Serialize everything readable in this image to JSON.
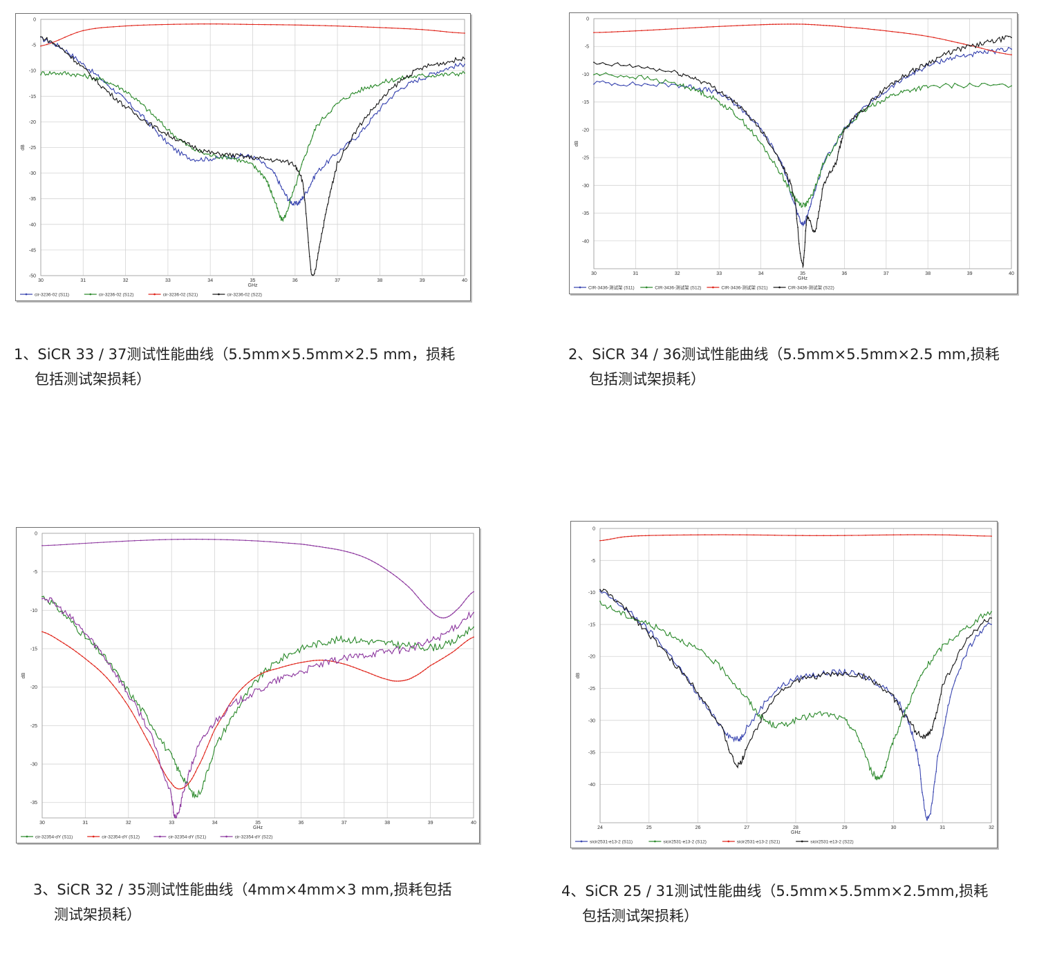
{
  "captions": [
    {
      "line1": "1、SiCR 33 / 37测试性能曲线（5.5mm×5.5mm×2.5 mm，损耗",
      "line2": "包括测试架损耗）"
    },
    {
      "line1": "2、SiCR 34 / 36测试性能曲线（5.5mm×5.5mm×2.5 mm,损耗",
      "line2": "包括测试架损耗）"
    },
    {
      "line1": "3、SiCR 32 / 35测试性能曲线（4mm×4mm×3 mm,损耗包括",
      "line2": "测试架损耗）"
    },
    {
      "line1": "4、SiCR 25 / 31测试性能曲线（5.5mm×5.5mm×2.5mm,损耗",
      "line2": "包括测试架损耗）"
    }
  ],
  "chart_data": [
    {
      "type": "line",
      "xlabel": "GHz",
      "ylabel": "dB",
      "xlim": [
        30,
        40
      ],
      "ylim": [
        -50,
        0
      ],
      "xticks": [
        30,
        31,
        32,
        33,
        34,
        35,
        36,
        37,
        38,
        39,
        40
      ],
      "yticks": [
        0,
        -5,
        -10,
        -15,
        -20,
        -25,
        -30,
        -35,
        -40,
        -45,
        -50
      ],
      "grid": true,
      "legend_position": "bottom",
      "series": [
        {
          "name": "cir-3236-02 (S11)",
          "color": "#3a46b0",
          "x": [
            30,
            30.5,
            31,
            31.5,
            32,
            32.5,
            33,
            33.5,
            34,
            34.5,
            35,
            35.5,
            35.8,
            36,
            36.2,
            36.5,
            37,
            37.5,
            38,
            38.5,
            39,
            39.5,
            40
          ],
          "y": [
            -3.8,
            -5.6,
            -8.8,
            -12.2,
            -15.8,
            -19.8,
            -24.2,
            -27,
            -27.2,
            -26.8,
            -26.9,
            -30,
            -34.5,
            -36,
            -34.5,
            -30,
            -26,
            -22.5,
            -17.5,
            -13.5,
            -11.5,
            -9.8,
            -8.8
          ]
        },
        {
          "name": "cir-3236-02 (S12)",
          "color": "#2e8b2e",
          "x": [
            30,
            30.5,
            31,
            31.5,
            32,
            32.5,
            33,
            33.5,
            34,
            34.5,
            35,
            35.3,
            35.5,
            35.7,
            35.9,
            36.2,
            36.5,
            37,
            37.5,
            38,
            38.5,
            39,
            39.5,
            40
          ],
          "y": [
            -10.5,
            -10.5,
            -11,
            -12,
            -14,
            -17.5,
            -21.5,
            -24.8,
            -26.5,
            -27,
            -28.5,
            -31,
            -35,
            -39,
            -35,
            -27.5,
            -21,
            -16.5,
            -14,
            -12.5,
            -11.5,
            -11,
            -10.8,
            -10.5
          ]
        },
        {
          "name": "cir-3236-02 (S21)",
          "color": "#e0261c",
          "x": [
            30,
            31,
            32,
            33,
            34,
            35,
            36,
            37,
            38,
            39,
            40
          ],
          "y": [
            -5.2,
            -2.2,
            -1.3,
            -1,
            -0.9,
            -1,
            -1.1,
            -1.3,
            -1.6,
            -2,
            -2.7
          ]
        },
        {
          "name": "cir-3236-02 (S22)",
          "color": "#1a1a1a",
          "x": [
            30,
            30.5,
            31,
            31.5,
            32,
            32.5,
            33,
            33.5,
            34,
            34.5,
            35,
            35.5,
            36,
            36.2,
            36.4,
            36.6,
            36.8,
            37,
            37.5,
            38,
            38.5,
            39,
            39.5,
            40
          ],
          "y": [
            -3.5,
            -5.8,
            -9.5,
            -13.5,
            -17,
            -20,
            -22.5,
            -24.5,
            -26,
            -26.5,
            -27,
            -27.5,
            -28.5,
            -33,
            -50,
            -43,
            -35,
            -28,
            -21,
            -16,
            -12,
            -9.5,
            -8.5,
            -7.7
          ]
        }
      ]
    },
    {
      "type": "line",
      "xlabel": "GHz",
      "ylabel": "dB",
      "xlim": [
        30,
        40
      ],
      "ylim": [
        -45,
        0
      ],
      "xticks": [
        30,
        31,
        32,
        33,
        34,
        35,
        36,
        37,
        38,
        39,
        40
      ],
      "yticks": [
        0,
        -5,
        -10,
        -15,
        -20,
        -25,
        -30,
        -35,
        -40
      ],
      "grid": true,
      "legend_position": "bottom",
      "series": [
        {
          "name": "CIR-3436-测试架 (S11)",
          "color": "#3a46b0",
          "x": [
            30,
            31,
            32,
            32.5,
            33,
            33.5,
            34,
            34.5,
            34.8,
            35,
            35.2,
            35.5,
            36,
            36.5,
            37,
            37.5,
            38,
            38.5,
            39,
            39.5,
            40
          ],
          "y": [
            -11.5,
            -11.8,
            -12,
            -12.5,
            -13.5,
            -16,
            -20,
            -26,
            -33,
            -37,
            -33,
            -26,
            -20,
            -16,
            -13,
            -10.5,
            -8.5,
            -7.2,
            -6.5,
            -6,
            -5.5
          ]
        },
        {
          "name": "CIR-3436-测试架 (S12)",
          "color": "#2e8b2e",
          "x": [
            30,
            31,
            32,
            32.5,
            33,
            33.5,
            34,
            34.5,
            34.8,
            35,
            35.2,
            35.5,
            36,
            36.5,
            37,
            37.5,
            38,
            39,
            40
          ],
          "y": [
            -10,
            -10.5,
            -11.8,
            -13,
            -15,
            -18,
            -22.5,
            -28,
            -32,
            -33.5,
            -32,
            -26,
            -20,
            -16.5,
            -14.3,
            -13,
            -12.3,
            -12,
            -12.1
          ]
        },
        {
          "name": "CIR-3436-测试架 (S21)",
          "color": "#e0261c",
          "x": [
            30,
            31,
            32,
            33,
            34,
            34.5,
            35,
            35.5,
            36,
            37,
            38,
            39,
            40
          ],
          "y": [
            -2.5,
            -2.2,
            -1.8,
            -1.4,
            -1.1,
            -1,
            -1,
            -1.2,
            -1.5,
            -2.2,
            -3.2,
            -4.8,
            -6.5
          ]
        },
        {
          "name": "CIR-3436-测试架 (S22)",
          "color": "#1a1a1a",
          "x": [
            30,
            31,
            32,
            32.5,
            33,
            33.5,
            34,
            34.5,
            34.8,
            35,
            35.1,
            35.3,
            35.5,
            35.8,
            36,
            36.5,
            37,
            37.5,
            38,
            38.5,
            39,
            39.5,
            40
          ],
          "y": [
            -8.2,
            -8.6,
            -9.8,
            -11,
            -13,
            -16,
            -20,
            -26,
            -32,
            -44.5,
            -36,
            -38,
            -30,
            -26,
            -20,
            -16,
            -12.5,
            -10,
            -8,
            -6.2,
            -5,
            -4.2,
            -3.4
          ]
        }
      ]
    },
    {
      "type": "line",
      "xlabel": "GHz",
      "ylabel": "dB",
      "xlim": [
        30,
        40
      ],
      "ylim": [
        -37,
        0
      ],
      "xticks": [
        30,
        31,
        32,
        33,
        34,
        35,
        36,
        37,
        38,
        39,
        40
      ],
      "yticks": [
        0,
        -5,
        -10,
        -15,
        -20,
        -25,
        -30,
        -35
      ],
      "grid": true,
      "legend_position": "bottom",
      "series": [
        {
          "name": "cir-32354-dY (S11)",
          "color": "#2e8b2e",
          "x": [
            30,
            30.5,
            31,
            31.5,
            32,
            32.5,
            33,
            33.3,
            33.6,
            34,
            34.5,
            35,
            35.5,
            36,
            36.5,
            37,
            37.5,
            38,
            38.5,
            39,
            39.5,
            40
          ],
          "y": [
            -8.2,
            -10.5,
            -13.5,
            -16.5,
            -20.5,
            -24.5,
            -29,
            -32,
            -34,
            -28,
            -23,
            -19,
            -16.5,
            -15,
            -14.2,
            -13.8,
            -14,
            -14.3,
            -14.6,
            -14.8,
            -14.2,
            -12.2
          ]
        },
        {
          "name": "cir-32354-dY (S12)",
          "color": "#e0261c",
          "x": [
            30,
            30.5,
            31,
            31.5,
            32,
            32.5,
            33,
            33.3,
            33.6,
            34,
            34.5,
            35,
            35.5,
            36,
            36.5,
            37,
            37.5,
            38,
            38.3,
            38.6,
            39,
            39.5,
            40
          ],
          "y": [
            -12.8,
            -14.3,
            -16.3,
            -18.8,
            -22.5,
            -27.5,
            -32.5,
            -33,
            -30.5,
            -25.5,
            -21,
            -18.5,
            -17.5,
            -16.8,
            -16.5,
            -17,
            -18,
            -19,
            -19.2,
            -18.7,
            -17.2,
            -15.5,
            -13.5
          ]
        },
        {
          "name": "cir-32354-dY (S21)",
          "color": "#8e3aa0",
          "x": [
            30,
            31,
            32,
            33,
            34,
            35,
            36,
            36.5,
            37,
            37.5,
            38,
            38.5,
            39,
            39.3,
            39.6,
            40
          ],
          "y": [
            -1.6,
            -1.3,
            -1,
            -0.8,
            -0.8,
            -1,
            -1.4,
            -1.8,
            -2.3,
            -3.2,
            -4.8,
            -7,
            -10,
            -11,
            -10,
            -7.6
          ]
        },
        {
          "name": "cir-32354-dY (S22)",
          "color": "#8e3aa0",
          "x": [
            30,
            30.5,
            31,
            31.5,
            32,
            32.5,
            33,
            33.1,
            33.3,
            33.6,
            34,
            34.5,
            35,
            35.5,
            36,
            36.5,
            37,
            37.5,
            38,
            38.5,
            39,
            39.5,
            40
          ],
          "y": [
            -8.2,
            -10.2,
            -13,
            -16.5,
            -21,
            -26,
            -34,
            -37,
            -33,
            -28,
            -24.5,
            -22,
            -20.5,
            -19,
            -18,
            -17,
            -16.3,
            -15.8,
            -15.3,
            -15,
            -14,
            -12.5,
            -10.3
          ]
        }
      ]
    },
    {
      "type": "line",
      "xlabel": "GHz",
      "ylabel": "dB",
      "xlim": [
        24,
        32
      ],
      "ylim": [
        -46,
        0
      ],
      "xticks": [
        24,
        25,
        26,
        27,
        28,
        29,
        30,
        31,
        32
      ],
      "yticks": [
        0,
        -5,
        -10,
        -15,
        -20,
        -25,
        -30,
        -35,
        -40
      ],
      "grid": true,
      "legend_position": "bottom",
      "series": [
        {
          "name": "sicir2531-e13-2 (S11)",
          "color": "#3a46b0",
          "x": [
            24,
            24.5,
            25,
            25.5,
            26,
            26.5,
            26.8,
            27,
            27.5,
            28,
            28.5,
            29,
            29.5,
            30,
            30.3,
            30.5,
            30.7,
            30.9,
            31.2,
            31.6,
            32
          ],
          "y": [
            -10,
            -12.5,
            -16,
            -20.5,
            -26,
            -31,
            -33,
            -31,
            -26,
            -23.5,
            -22.8,
            -22.5,
            -23.5,
            -26,
            -30,
            -36,
            -45.5,
            -36,
            -25,
            -18,
            -15
          ]
        },
        {
          "name": "sicir2531-e13-2 (S12)",
          "color": "#2e8b2e",
          "x": [
            24,
            24.5,
            25,
            25.5,
            26,
            26.5,
            27,
            27.3,
            27.6,
            28,
            28.5,
            29,
            29.3,
            29.6,
            29.8,
            30,
            30.3,
            30.6,
            31,
            31.5,
            32
          ],
          "y": [
            -11.8,
            -13.5,
            -15,
            -16.8,
            -19,
            -22,
            -26.5,
            -29.5,
            -30.8,
            -30,
            -29,
            -30,
            -33,
            -38.5,
            -38,
            -33,
            -27.5,
            -22.5,
            -18.5,
            -15.5,
            -13
          ]
        },
        {
          "name": "sicir2531-e13-2 (S21)",
          "color": "#e0261c",
          "x": [
            24,
            24.5,
            25,
            26,
            27,
            28,
            29,
            30,
            31,
            32
          ],
          "y": [
            -1.9,
            -1.3,
            -1.1,
            -1,
            -1,
            -1.1,
            -1.1,
            -1,
            -1,
            -1.2
          ]
        },
        {
          "name": "sicir2531-e13-2 (S22)",
          "color": "#1a1a1a",
          "x": [
            24,
            24.5,
            25,
            25.5,
            26,
            26.5,
            26.8,
            27,
            27.5,
            28,
            28.5,
            29,
            29.5,
            30,
            30.3,
            30.6,
            30.8,
            31,
            31.5,
            32
          ],
          "y": [
            -9.5,
            -12.5,
            -16.5,
            -21,
            -25.5,
            -31.5,
            -37,
            -34,
            -27,
            -24,
            -23,
            -22.8,
            -23.5,
            -26.5,
            -30,
            -32.5,
            -31,
            -24.5,
            -17.5,
            -14
          ]
        }
      ]
    }
  ]
}
